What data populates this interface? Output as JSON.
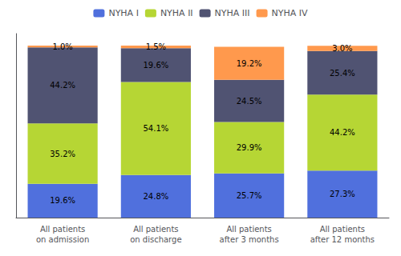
{
  "chart_data": {
    "type": "bar",
    "categories": [
      "All patients\non admission",
      "All patients\non discharge",
      "All patients\nafter 3 months",
      "All patients\nafter 12 months"
    ],
    "series": [
      {
        "name": "NYHA I",
        "values": [
          19.6,
          24.8,
          25.7,
          27.3
        ],
        "value_labels": [
          "19.6%",
          "24.8%",
          "25.7%",
          "27.3%"
        ]
      },
      {
        "name": "NYHA II",
        "values": [
          35.2,
          54.1,
          29.9,
          44.2
        ],
        "value_labels": [
          "35.2%",
          "54.1%",
          "29.9%",
          "44.2%"
        ]
      },
      {
        "name": "NYHA III",
        "values": [
          44.2,
          19.6,
          24.5,
          25.4
        ],
        "value_labels": [
          "44.2%",
          "19.6%",
          "24.5%",
          "25.4%"
        ]
      },
      {
        "name": "NYHA IV",
        "values": [
          1.0,
          1.5,
          19.2,
          3.0
        ],
        "value_labels": [
          "1.0%",
          "1.5%",
          "19.2%",
          "3.0%"
        ]
      }
    ],
    "ylim": [
      0,
      107
    ],
    "stacked": true,
    "data_labels": true,
    "tick_labels": "x",
    "grid": false,
    "legend": "top"
  }
}
